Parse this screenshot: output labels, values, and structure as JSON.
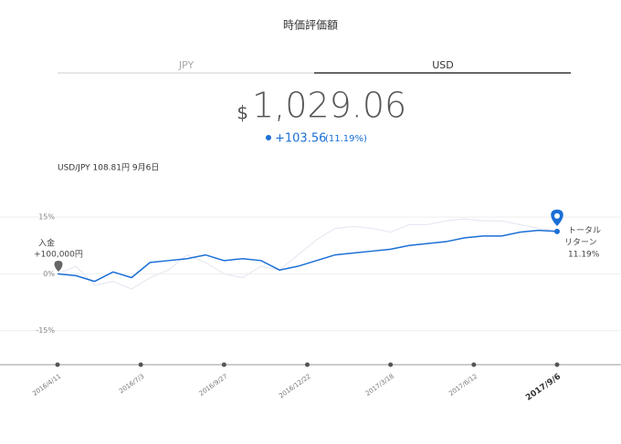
{
  "header": {
    "title": "時価評価額"
  },
  "tabs": [
    "JPY",
    "USD"
  ],
  "summary": {
    "currency": "$",
    "amount": "1,029.06",
    "change": "+103.56",
    "change_pct": "(11.19%)",
    "fx": "USD/JPY 108.81円 9月6日"
  },
  "chart_data": {
    "type": "line",
    "xticks": [
      "2016/4/11",
      "2016/7/3",
      "2016/9/27",
      "2016/12/22",
      "2017/3/18",
      "2017/6/12",
      "2017/9/6"
    ],
    "ylim": [
      -24,
      22
    ],
    "yticks": [
      {
        "value": 15,
        "label": "15%"
      },
      {
        "value": 0,
        "label": "0%"
      },
      {
        "value": -15,
        "label": "-15%"
      }
    ],
    "grid": true,
    "series": [
      {
        "name": "JPY",
        "color": "#e6e9f2",
        "values": [
          0,
          2,
          -3,
          -2,
          -4,
          -1,
          1,
          5,
          3,
          0,
          -1,
          2,
          1,
          5,
          9,
          12,
          12.5,
          12,
          11,
          13,
          13,
          14,
          14.5,
          14,
          14,
          13,
          12,
          11.5
        ]
      },
      {
        "name": "USD",
        "color": "#1a6fd6",
        "values": [
          0,
          -0.5,
          -2,
          0.5,
          -1,
          3,
          3.5,
          4,
          5,
          3.5,
          4,
          3.5,
          1,
          2,
          3.5,
          5,
          5.5,
          6,
          6.5,
          7.5,
          8,
          8.5,
          9.5,
          10,
          10,
          11,
          11.5,
          11.19
        ]
      }
    ],
    "annotations": {
      "deposit": "入金",
      "deposit_amount": "+100,000円",
      "total": "トータル",
      "return": "リターン",
      "return_pct": "11.19%"
    }
  }
}
